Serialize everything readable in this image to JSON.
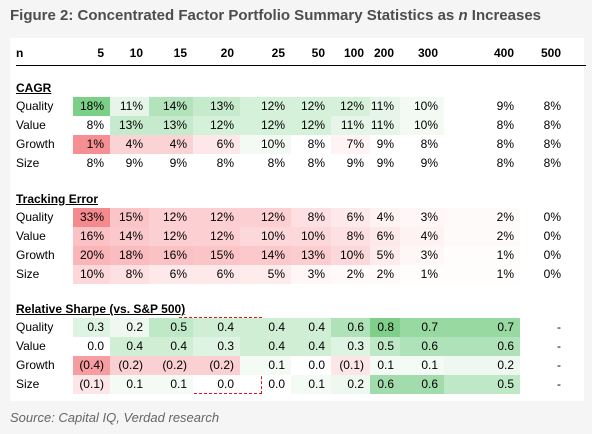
{
  "title_prefix": "Figure 2: Concentrated Factor Portfolio Summary Statistics as ",
  "title_n": "n",
  "title_suffix": " Increases",
  "header": {
    "label": "n",
    "columns": [
      "5",
      "10",
      "15",
      "20",
      "25",
      "50",
      "100",
      "200",
      "300",
      "400",
      "500"
    ]
  },
  "sections": [
    {
      "name": "CAGR",
      "rows": [
        {
          "label": "Quality",
          "values": [
            "18%",
            "11%",
            "14%",
            "13%",
            "12%",
            "12%",
            "12%",
            "11%",
            "10%",
            "9%",
            "8%"
          ],
          "colors": [
            "#7ccf86",
            "#e6f5e8",
            "#b3e3bb",
            "#c6ebcc",
            "#d6f1da",
            "#d6f1da",
            "#d6f1da",
            "#e6f5e8",
            "#f3faf4",
            "#ffffff",
            "#ffffff"
          ]
        },
        {
          "label": "Value",
          "values": [
            "8%",
            "13%",
            "13%",
            "12%",
            "12%",
            "12%",
            "11%",
            "11%",
            "10%",
            "8%",
            "8%"
          ],
          "colors": [
            "#ffffff",
            "#c6ebcc",
            "#c6ebcc",
            "#d6f1da",
            "#d6f1da",
            "#d6f1da",
            "#e6f5e8",
            "#e6f5e8",
            "#f3faf4",
            "#ffffff",
            "#ffffff"
          ]
        },
        {
          "label": "Growth",
          "values": [
            "1%",
            "4%",
            "4%",
            "6%",
            "10%",
            "8%",
            "7%",
            "9%",
            "8%",
            "8%",
            "8%"
          ],
          "colors": [
            "#f58f93",
            "#fcd3d5",
            "#fcd3d5",
            "#fde7e8",
            "#f3faf4",
            "#ffffff",
            "#fff3f3",
            "#ffffff",
            "#ffffff",
            "#ffffff",
            "#ffffff"
          ]
        },
        {
          "label": "Size",
          "values": [
            "8%",
            "9%",
            "9%",
            "8%",
            "8%",
            "8%",
            "9%",
            "9%",
            "9%",
            "8%",
            "8%"
          ],
          "colors": [
            "#ffffff",
            "#ffffff",
            "#ffffff",
            "#ffffff",
            "#ffffff",
            "#ffffff",
            "#ffffff",
            "#ffffff",
            "#ffffff",
            "#ffffff",
            "#ffffff"
          ]
        }
      ]
    },
    {
      "name": "Tracking Error",
      "rows": [
        {
          "label": "Quality",
          "values": [
            "33%",
            "15%",
            "12%",
            "12%",
            "12%",
            "8%",
            "6%",
            "4%",
            "3%",
            "2%",
            "0%"
          ],
          "colors": [
            "#f48a8e",
            "#fbc5c8",
            "#fcd0d2",
            "#fcd0d2",
            "#fcd0d2",
            "#fde0e1",
            "#fde9ea",
            "#fef2f2",
            "#fff7f7",
            "#fffafa",
            "#ffffff"
          ]
        },
        {
          "label": "Value",
          "values": [
            "16%",
            "14%",
            "12%",
            "12%",
            "10%",
            "10%",
            "8%",
            "6%",
            "4%",
            "2%",
            "0%"
          ],
          "colors": [
            "#fbc2c5",
            "#fbc9cc",
            "#fcd0d2",
            "#fcd0d2",
            "#fdd8da",
            "#fdd8da",
            "#fde0e1",
            "#fde9ea",
            "#fef2f2",
            "#fffafa",
            "#ffffff"
          ]
        },
        {
          "label": "Growth",
          "values": [
            "20%",
            "18%",
            "16%",
            "15%",
            "14%",
            "13%",
            "10%",
            "5%",
            "3%",
            "1%",
            "0%"
          ],
          "colors": [
            "#fab5b8",
            "#fbbcbf",
            "#fbc2c5",
            "#fbc5c8",
            "#fbc9cc",
            "#fccdcf",
            "#fdd8da",
            "#feeced",
            "#fff7f7",
            "#fffcfc",
            "#ffffff"
          ]
        },
        {
          "label": "Size",
          "values": [
            "10%",
            "8%",
            "6%",
            "6%",
            "5%",
            "3%",
            "2%",
            "2%",
            "1%",
            "1%",
            "0%"
          ],
          "colors": [
            "#fdd8da",
            "#fde0e1",
            "#fde9ea",
            "#fde9ea",
            "#feeced",
            "#fff7f7",
            "#fffafa",
            "#fffafa",
            "#fffcfc",
            "#fffcfc",
            "#ffffff"
          ]
        }
      ]
    },
    {
      "name": "Relative Sharpe (vs. S&P 500)",
      "rows": [
        {
          "label": "Quality",
          "values": [
            "0.3",
            "0.2",
            "0.5",
            "0.4",
            "0.4",
            "0.4",
            "0.6",
            "0.8",
            "0.7",
            "0.7",
            "-"
          ],
          "colors": [
            "#def3e2",
            "#eef8f0",
            "#bfe8c6",
            "#cfeed4",
            "#cfeed4",
            "#cfeed4",
            "#afe2b8",
            "#7fcf8a",
            "#97d9a1",
            "#97d9a1",
            "#ffffff"
          ]
        },
        {
          "label": "Value",
          "values": [
            "0.0",
            "0.4",
            "0.4",
            "0.3",
            "0.4",
            "0.4",
            "0.3",
            "0.5",
            "0.6",
            "0.6",
            "-"
          ],
          "colors": [
            "#ffffff",
            "#cfeed4",
            "#cfeed4",
            "#def3e2",
            "#cfeed4",
            "#cfeed4",
            "#def3e2",
            "#bfe8c6",
            "#afe2b8",
            "#afe2b8",
            "#ffffff"
          ]
        },
        {
          "label": "Growth",
          "values": [
            "(0.4)",
            "(0.2)",
            "(0.2)",
            "(0.2)",
            "0.1",
            "0.0",
            "(0.1)",
            "0.1",
            "0.1",
            "0.2",
            "-"
          ],
          "colors": [
            "#f59da1",
            "#fbd0d2",
            "#fbd0d2",
            "#fbd0d2",
            "#f4fbf5",
            "#ffffff",
            "#fde6e7",
            "#f4fbf5",
            "#f4fbf5",
            "#eef8f0",
            "#ffffff"
          ]
        },
        {
          "label": "Size",
          "values": [
            "(0.1)",
            "0.1",
            "0.1",
            "0.0",
            "0.0",
            "0.1",
            "0.2",
            "0.6",
            "0.6",
            "0.5",
            "-"
          ],
          "colors": [
            "#fde6e7",
            "#f4fbf5",
            "#f4fbf5",
            "#ffffff",
            "#ffffff",
            "#f4fbf5",
            "#eef8f0",
            "#a3dcac",
            "#a3dcac",
            "#bfe8c6",
            "#ffffff"
          ]
        }
      ]
    }
  ],
  "source": "Source: Capital IQ, Verdad research"
}
